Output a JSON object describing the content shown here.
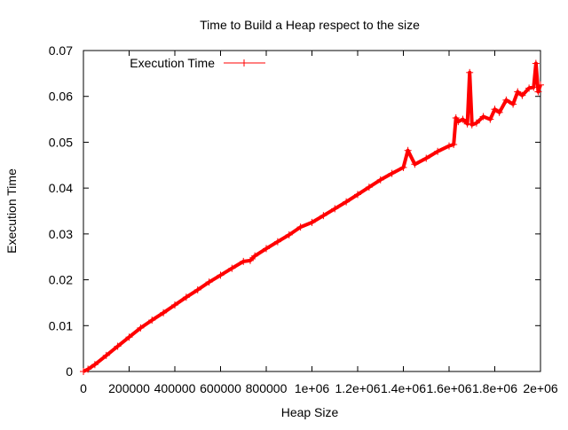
{
  "colors": {
    "background": "#ffffff",
    "axis": "#000000",
    "series": "#ff0000"
  },
  "chart_data": {
    "type": "line",
    "title": "Time to Build a Heap respect to the size",
    "xlabel": "Heap Size",
    "ylabel": "Execution Time",
    "xlim": [
      0,
      2000000
    ],
    "ylim": [
      0,
      0.07
    ],
    "grid": false,
    "legend_position": "top-left",
    "x_ticks": [
      {
        "value": 0,
        "label": "0"
      },
      {
        "value": 200000,
        "label": "200000"
      },
      {
        "value": 400000,
        "label": "400000"
      },
      {
        "value": 600000,
        "label": "600000"
      },
      {
        "value": 800000,
        "label": "800000"
      },
      {
        "value": 1000000,
        "label": "1e+06"
      },
      {
        "value": 1200000,
        "label": "1.2e+06"
      },
      {
        "value": 1400000,
        "label": "1.4e+06"
      },
      {
        "value": 1600000,
        "label": "1.6e+06"
      },
      {
        "value": 1800000,
        "label": "1.8e+06"
      },
      {
        "value": 2000000,
        "label": "2e+06"
      }
    ],
    "y_ticks": [
      {
        "value": 0,
        "label": "0"
      },
      {
        "value": 0.01,
        "label": "0.01"
      },
      {
        "value": 0.02,
        "label": "0.02"
      },
      {
        "value": 0.03,
        "label": "0.03"
      },
      {
        "value": 0.04,
        "label": "0.04"
      },
      {
        "value": 0.05,
        "label": "0.05"
      },
      {
        "value": 0.06,
        "label": "0.06"
      },
      {
        "value": 0.07,
        "label": "0.07"
      }
    ],
    "series": [
      {
        "name": "Execution Time",
        "marker": "plus",
        "x": [
          0,
          20000,
          50000,
          100000,
          150000,
          200000,
          250000,
          300000,
          350000,
          400000,
          450000,
          500000,
          550000,
          600000,
          650000,
          700000,
          730000,
          750000,
          800000,
          850000,
          900000,
          950000,
          1000000,
          1050000,
          1100000,
          1150000,
          1200000,
          1250000,
          1300000,
          1350000,
          1400000,
          1420000,
          1450000,
          1500000,
          1550000,
          1600000,
          1620000,
          1630000,
          1640000,
          1660000,
          1680000,
          1690000,
          1700000,
          1720000,
          1750000,
          1780000,
          1800000,
          1820000,
          1850000,
          1880000,
          1900000,
          1920000,
          1950000,
          1970000,
          1980000,
          1990000,
          2000000
        ],
        "y": [
          0.0,
          0.0005,
          0.0015,
          0.0035,
          0.0055,
          0.0075,
          0.0095,
          0.0112,
          0.0128,
          0.0145,
          0.0162,
          0.0178,
          0.0195,
          0.021,
          0.0225,
          0.024,
          0.0242,
          0.0252,
          0.0268,
          0.0283,
          0.0298,
          0.0315,
          0.0325,
          0.034,
          0.0355,
          0.037,
          0.0386,
          0.0402,
          0.0418,
          0.0432,
          0.0445,
          0.0482,
          0.0452,
          0.0465,
          0.048,
          0.0492,
          0.0495,
          0.0553,
          0.0545,
          0.055,
          0.054,
          0.0652,
          0.0538,
          0.0542,
          0.0556,
          0.055,
          0.0572,
          0.0565,
          0.0592,
          0.0583,
          0.061,
          0.0602,
          0.0618,
          0.062,
          0.0672,
          0.061,
          0.0625
        ]
      }
    ]
  }
}
